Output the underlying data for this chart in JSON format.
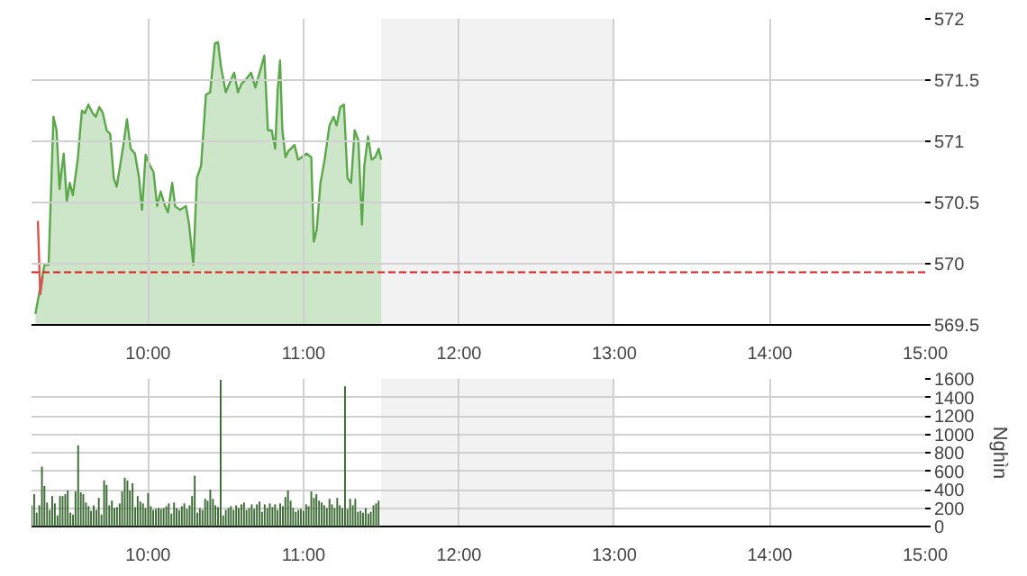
{
  "chart_data": [
    {
      "type": "area",
      "xlim": [
        9.25,
        15
      ],
      "ylim": [
        569.5,
        572
      ],
      "xticks": [
        {
          "value": 10,
          "label": "10:00"
        },
        {
          "value": 11,
          "label": "11:00"
        },
        {
          "value": 12,
          "label": "12:00"
        },
        {
          "value": 13,
          "label": "13:00"
        },
        {
          "value": 14,
          "label": "14:00"
        },
        {
          "value": 15,
          "label": "15:00"
        }
      ],
      "yticks": [
        569.5,
        570,
        570.5,
        571,
        571.5,
        572
      ],
      "grid": true,
      "series": [
        {
          "type": "area",
          "color": "#5aa84a",
          "x": [
            9.275,
            9.333,
            9.36,
            9.391,
            9.411,
            9.43,
            9.442,
            9.457,
            9.477,
            9.496,
            9.516,
            9.547,
            9.574,
            9.593,
            9.616,
            9.643,
            9.663,
            9.686,
            9.709,
            9.733,
            9.756,
            9.779,
            9.798,
            9.826,
            9.841,
            9.864,
            9.888,
            9.915,
            9.942,
            9.961,
            9.984,
            10.012,
            10.035,
            10.058,
            10.081,
            10.109,
            10.128,
            10.155,
            10.174,
            10.205,
            10.244,
            10.264,
            10.291,
            10.314,
            10.341,
            10.372,
            10.399,
            10.43,
            10.45,
            10.469,
            10.5,
            10.523,
            10.554,
            10.578,
            10.601,
            10.632,
            10.663,
            10.69,
            10.717,
            10.748,
            10.771,
            10.795,
            10.818,
            10.833,
            10.849,
            10.864,
            10.884,
            10.903,
            10.942,
            10.965,
            10.988,
            11.019,
            11.05,
            11.066,
            11.085,
            11.109,
            11.136,
            11.167,
            11.194,
            11.213,
            11.236,
            11.26,
            11.283,
            11.306,
            11.329,
            11.353,
            11.376,
            11.391,
            11.415,
            11.438,
            11.461,
            11.484,
            11.5
          ],
          "values": [
            569.59,
            569.99,
            569.99,
            571.2,
            571.09,
            570.61,
            570.75,
            570.9,
            570.51,
            570.66,
            570.56,
            570.85,
            571.25,
            571.23,
            571.3,
            571.23,
            571.2,
            571.28,
            571.23,
            571.09,
            571.06,
            570.7,
            570.63,
            570.85,
            570.97,
            571.18,
            570.94,
            570.9,
            570.7,
            570.44,
            570.89,
            570.8,
            570.75,
            570.47,
            570.59,
            570.47,
            570.42,
            570.66,
            570.47,
            570.44,
            570.47,
            570.32,
            569.99,
            570.7,
            570.8,
            571.38,
            571.4,
            571.8,
            571.81,
            571.61,
            571.4,
            571.47,
            571.56,
            571.4,
            571.47,
            571.51,
            571.56,
            571.44,
            571.56,
            571.7,
            571.09,
            571.09,
            570.94,
            571.4,
            571.66,
            571.09,
            570.87,
            570.92,
            570.97,
            570.85,
            570.87,
            570.9,
            570.87,
            570.18,
            570.28,
            570.66,
            570.85,
            571.13,
            571.2,
            571.13,
            571.28,
            571.3,
            570.7,
            570.66,
            571.09,
            571.01,
            570.32,
            570.8,
            571.04,
            570.85,
            570.87,
            570.94,
            570.85
          ]
        },
        {
          "type": "line",
          "color": "#d9534f",
          "x": [
            9.291,
            9.306,
            9.322
          ],
          "values": [
            570.35,
            569.75,
            569.9
          ]
        }
      ],
      "ref_lines": [
        {
          "axis": "y",
          "value": 569.93,
          "color": "#e31a1c",
          "line_style": "dashed"
        }
      ],
      "bands": [
        {
          "axis": "x",
          "from": 11.5,
          "to": 13,
          "color": "#f2f2f2"
        }
      ]
    },
    {
      "type": "bar",
      "xlim": [
        9.25,
        15
      ],
      "ylim": [
        0,
        1600
      ],
      "ylabel": "Nghìn",
      "xticks": [
        {
          "value": 10,
          "label": "10:00"
        },
        {
          "value": 11,
          "label": "11:00"
        },
        {
          "value": 12,
          "label": "12:00"
        },
        {
          "value": 13,
          "label": "13:00"
        },
        {
          "value": 14,
          "label": "14:00"
        },
        {
          "value": 15,
          "label": "15:00"
        }
      ],
      "yticks": [
        0,
        200,
        400,
        600,
        800,
        1000,
        1200,
        1400,
        1600
      ],
      "grid": true,
      "bands": [
        {
          "axis": "x",
          "from": 11.5,
          "to": 13,
          "color": "#f2f2f2"
        }
      ],
      "series": [
        {
          "color": "#3d6b35",
          "x": [
            9.25,
            9.267,
            9.283,
            9.3,
            9.317,
            9.333,
            9.35,
            9.367,
            9.383,
            9.4,
            9.417,
            9.433,
            9.45,
            9.467,
            9.483,
            9.5,
            9.517,
            9.533,
            9.55,
            9.567,
            9.583,
            9.6,
            9.617,
            9.633,
            9.65,
            9.667,
            9.683,
            9.7,
            9.717,
            9.733,
            9.75,
            9.767,
            9.783,
            9.8,
            9.817,
            9.833,
            9.85,
            9.867,
            9.883,
            9.9,
            9.917,
            9.933,
            9.95,
            9.967,
            9.983,
            10.0,
            10.017,
            10.033,
            10.05,
            10.067,
            10.083,
            10.1,
            10.117,
            10.133,
            10.15,
            10.167,
            10.183,
            10.2,
            10.217,
            10.233,
            10.25,
            10.267,
            10.283,
            10.3,
            10.317,
            10.333,
            10.35,
            10.367,
            10.383,
            10.4,
            10.417,
            10.433,
            10.45,
            10.467,
            10.483,
            10.5,
            10.517,
            10.533,
            10.55,
            10.567,
            10.583,
            10.6,
            10.617,
            10.633,
            10.65,
            10.667,
            10.683,
            10.7,
            10.717,
            10.733,
            10.75,
            10.767,
            10.783,
            10.8,
            10.817,
            10.833,
            10.85,
            10.867,
            10.883,
            10.9,
            10.917,
            10.933,
            10.95,
            10.967,
            10.983,
            11.0,
            11.017,
            11.033,
            11.05,
            11.067,
            11.083,
            11.1,
            11.117,
            11.133,
            11.15,
            11.167,
            11.183,
            11.2,
            11.217,
            11.233,
            11.25,
            11.267,
            11.283,
            11.3,
            11.317,
            11.333,
            11.35,
            11.367,
            11.383,
            11.4,
            11.417,
            11.433,
            11.45,
            11.467,
            11.483
          ],
          "values": [
            230,
            350,
            150,
            230,
            650,
            440,
            260,
            180,
            330,
            250,
            120,
            330,
            330,
            350,
            390,
            150,
            130,
            380,
            880,
            370,
            350,
            260,
            220,
            170,
            230,
            180,
            310,
            130,
            500,
            450,
            230,
            280,
            200,
            210,
            250,
            380,
            530,
            500,
            390,
            470,
            210,
            330,
            270,
            250,
            200,
            360,
            220,
            180,
            190,
            200,
            190,
            200,
            220,
            250,
            140,
            260,
            200,
            180,
            220,
            250,
            190,
            230,
            330,
            550,
            150,
            200,
            180,
            300,
            280,
            400,
            300,
            230,
            210,
            1590,
            120,
            180,
            200,
            220,
            180,
            230,
            200,
            240,
            260,
            180,
            200,
            240,
            190,
            240,
            270,
            160,
            240,
            200,
            250,
            210,
            240,
            180,
            250,
            220,
            320,
            390,
            280,
            200,
            160,
            180,
            190,
            170,
            240,
            220,
            380,
            310,
            350,
            280,
            260,
            230,
            200,
            300,
            240,
            200,
            310,
            230,
            200,
            1520,
            190,
            300,
            230,
            300,
            160,
            170,
            150,
            200,
            140,
            160,
            230,
            250,
            280
          ]
        }
      ]
    }
  ]
}
